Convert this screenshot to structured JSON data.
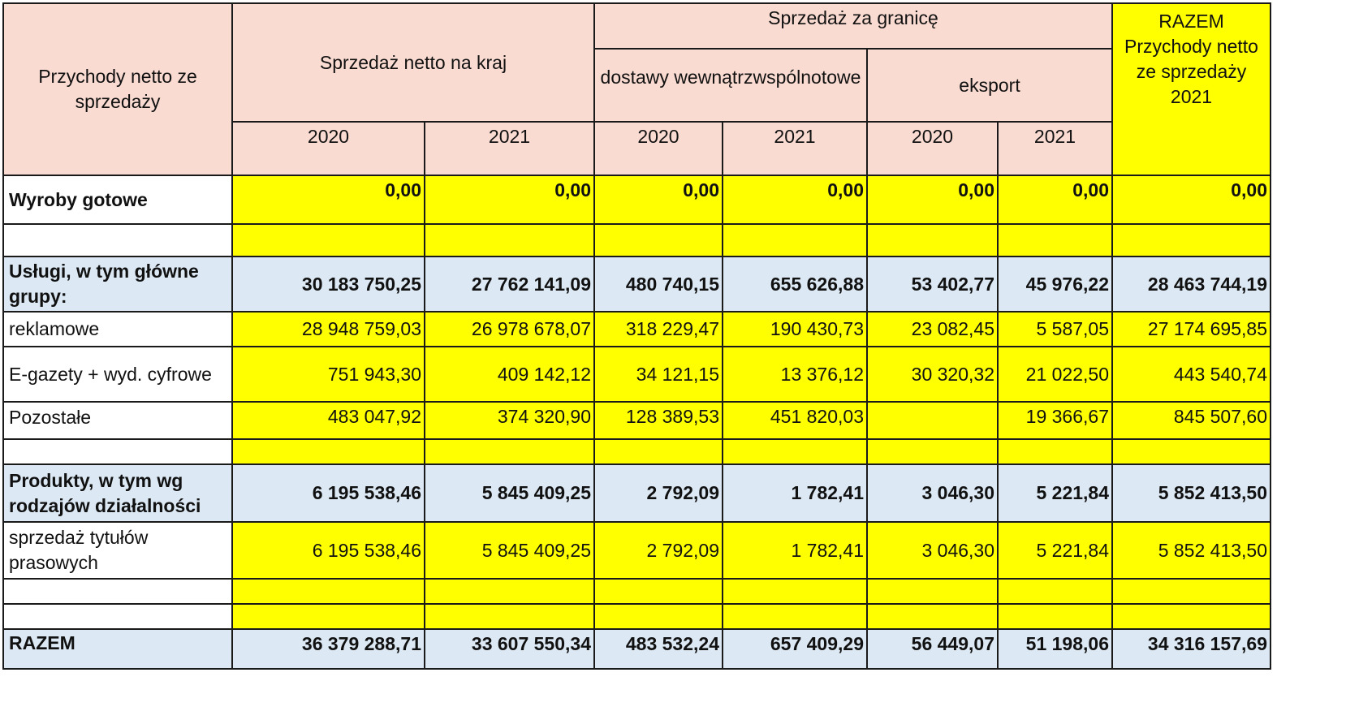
{
  "header": {
    "row_label": "Przychody netto ze sprzedaży",
    "domestic": "Sprzedaż netto na kraj",
    "foreign": "Sprzedaż za granicę",
    "intra_eu": "dostawy wewnątrzwspólnotowe",
    "export": "eksport",
    "total_col": "RAZEM Przychody netto ze sprzedaży 2021",
    "years": [
      "2020",
      "2021",
      "2020",
      "2021",
      "2020",
      "2021"
    ]
  },
  "rows": {
    "wyroby": {
      "label": "Wyroby gotowe",
      "values": [
        "0,00",
        "0,00",
        "0,00",
        "0,00",
        "0,00",
        "0,00",
        "0,00"
      ]
    },
    "uslugi": {
      "label": "Usługi, w tym główne grupy:",
      "values": [
        "30 183 750,25",
        "27 762 141,09",
        "480 740,15",
        "655 626,88",
        "53 402,77",
        "45 976,22",
        "28 463 744,19"
      ]
    },
    "reklamowe": {
      "label": "reklamowe",
      "values": [
        "28 948 759,03",
        "26 978 678,07",
        "318 229,47",
        "190 430,73",
        "23 082,45",
        "5 587,05",
        "27 174 695,85"
      ]
    },
    "egazety": {
      "label": "E-gazety + wyd. cyfrowe",
      "values": [
        "751 943,30",
        "409 142,12",
        "34 121,15",
        "13 376,12",
        "30 320,32",
        "21 022,50",
        "443 540,74"
      ]
    },
    "pozostale": {
      "label": "Pozostałe",
      "values": [
        "483 047,92",
        "374 320,90",
        "128 389,53",
        "451 820,03",
        "",
        "19 366,67",
        "845 507,60"
      ]
    },
    "produkty": {
      "label": "Produkty, w tym wg rodzajów działalności",
      "values": [
        "6 195 538,46",
        "5 845 409,25",
        "2 792,09",
        "1 782,41",
        "3 046,30",
        "5 221,84",
        "5 852 413,50"
      ]
    },
    "tytuly": {
      "label": "sprzedaż tytułów prasowych",
      "values": [
        "6 195 538,46",
        "5 845 409,25",
        "2 792,09",
        "1 782,41",
        "3 046,30",
        "5 221,84",
        "5 852 413,50"
      ]
    },
    "razem": {
      "label": "RAZEM",
      "values": [
        "36 379 288,71",
        "33 607 550,34",
        "483 532,24",
        "657 409,29",
        "56 449,07",
        "51 198,06",
        "34 316 157,69"
      ]
    }
  },
  "colors": {
    "header": "#fadbd1",
    "highlight": "#ffff00",
    "group": "#dce9f5"
  }
}
